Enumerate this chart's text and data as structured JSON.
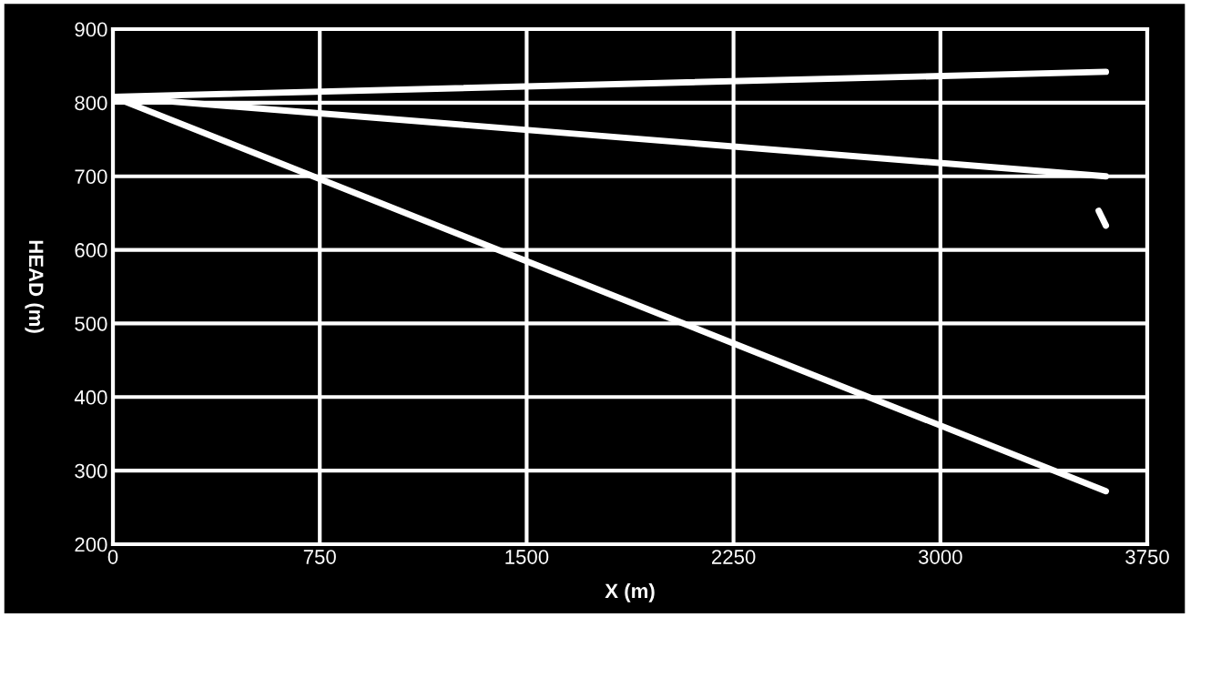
{
  "chart_data": {
    "type": "line",
    "xlabel": "X (m)",
    "ylabel": "HEAD (m)",
    "xlim": [
      0,
      3750
    ],
    "ylim": [
      200,
      900
    ],
    "xticks": [
      0,
      750,
      1500,
      2250,
      3000,
      3750
    ],
    "yticks": [
      200,
      300,
      400,
      500,
      600,
      700,
      800,
      900
    ],
    "grid": true,
    "marker": "none",
    "line_style": "solid",
    "series": [
      {
        "color": "#ffffff",
        "x": [
          0,
          3600
        ],
        "values": [
          808,
          842
        ]
      },
      {
        "color": "#ffffff",
        "x": [
          0,
          3600
        ],
        "values": [
          808,
          700
        ]
      },
      {
        "color": "#ffffff",
        "x": [
          0,
          3600
        ],
        "values": [
          808,
          272
        ]
      },
      {
        "color": "#ffffff",
        "x": [
          3574,
          3600
        ],
        "values": [
          653,
          633
        ]
      }
    ]
  }
}
